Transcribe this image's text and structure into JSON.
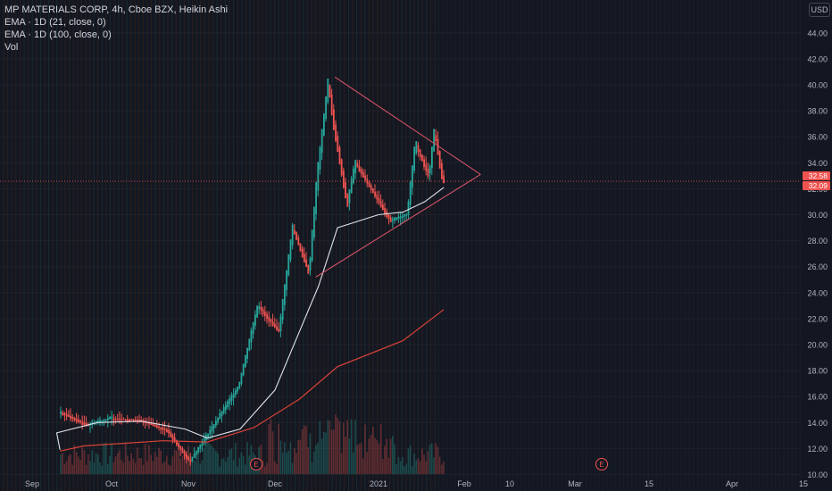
{
  "legend": {
    "title": "MP MATERIALS CORP, 4h, Cboe BZX, Heikin Ashi",
    "ema21": "EMA · 1D (21, close, 0)",
    "ema100": "EMA · 1D (100, close, 0)",
    "vol": "Vol"
  },
  "currency": "USD",
  "price_labels": {
    "last": "32.58",
    "ema": "32.09"
  },
  "colors": {
    "background": "#131722",
    "up": "#26a69a",
    "down": "#ef5350",
    "ema21": "#e0e3eb",
    "ema100": "#d84338",
    "pattern": "#e0566a",
    "axis_text": "#b2b5be"
  },
  "chart_data": {
    "type": "line",
    "chart_style": "heikin ashi candlestick",
    "y_ticks": [
      "10.00",
      "12.00",
      "14.00",
      "16.00",
      "18.00",
      "20.00",
      "22.00",
      "24.00",
      "26.00",
      "28.00",
      "30.00",
      "32.00",
      "34.00",
      "36.00",
      "38.00",
      "40.00",
      "42.00",
      "44.00"
    ],
    "ylim": [
      10,
      45.5
    ],
    "x_ticks": [
      "Sep",
      "Oct",
      "Nov",
      "Dec",
      "2021",
      "Feb",
      "10",
      "Mar",
      "15",
      "Apr",
      "15"
    ],
    "events": [
      {
        "label": "E",
        "month": "Dec"
      },
      {
        "label": "E",
        "month": "Mar"
      }
    ],
    "series": [
      {
        "name": "price",
        "x": [
          "Aug 25",
          "Sep 3",
          "Sep 12",
          "Sep 22",
          "Oct 1",
          "Oct 12",
          "Oct 22",
          "Nov 2",
          "Nov 10",
          "Nov 20",
          "Nov 27",
          "Dec 3",
          "Dec 8",
          "Dec 14",
          "Dec 17",
          "Dec 21",
          "Dec 23",
          "Dec 28",
          "Dec 31",
          "Jan 6",
          "Jan 12",
          "Jan 15",
          "Jan 20",
          "Jan 22",
          "Jan 25"
        ],
        "values": [
          12.0,
          13.2,
          14.8,
          13.8,
          14.3,
          14.2,
          13.4,
          11.0,
          13.5,
          16.8,
          23.0,
          21.0,
          29.0,
          25.5,
          33.0,
          40.2,
          37.0,
          30.8,
          34.0,
          29.5,
          30.0,
          35.5,
          33.0,
          36.5,
          32.6
        ]
      },
      {
        "name": "EMA · 1D (21, close, 0)",
        "x": [
          "Aug 25",
          "Sep 10",
          "Sep 25",
          "Oct 12",
          "Oct 28",
          "Nov 8",
          "Nov 20",
          "Dec 1",
          "Dec 10",
          "Dec 17",
          "Dec 24",
          "Jan 1",
          "Jan 10",
          "Jan 18",
          "Jan 25"
        ],
        "values": [
          11.9,
          13.2,
          14.0,
          14.1,
          13.5,
          12.8,
          13.5,
          16.5,
          21.0,
          24.5,
          29.0,
          30.0,
          30.2,
          31.0,
          32.1
        ]
      },
      {
        "name": "EMA · 1D (100, close, 0)",
        "x": [
          "Aug 25",
          "Sep 20",
          "Oct 20",
          "Nov 8",
          "Nov 25",
          "Dec 10",
          "Dec 24",
          "Jan 10",
          "Jan 25"
        ],
        "values": [
          11.8,
          12.2,
          12.6,
          12.5,
          13.6,
          15.8,
          18.3,
          20.3,
          22.7
        ]
      }
    ],
    "pattern_lines": [
      {
        "name": "triangle-upper",
        "points": [
          [
            "Dec 23",
            40.6
          ],
          [
            "Feb 7",
            33.1
          ]
        ]
      },
      {
        "name": "triangle-lower",
        "points": [
          [
            "Dec 16",
            25.2
          ],
          [
            "Feb 7",
            33.1
          ]
        ]
      }
    ],
    "last_price": 32.58,
    "grid": true,
    "legend_placement": "top-left"
  }
}
